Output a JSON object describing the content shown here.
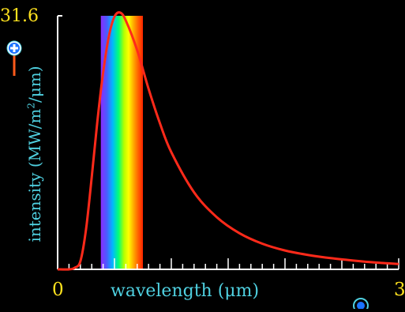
{
  "chart_data": {
    "type": "line",
    "xlabel": "wavelength",
    "xunit": "(μm)",
    "ylabel_main": "intensity (MW/m",
    "ylabel_sup": "2",
    "ylabel_tail": "/μm)",
    "ylim": [
      0,
      31.6
    ],
    "xlim": [
      0,
      3
    ],
    "ymax_label": "31.6",
    "x0_label": "0",
    "xmax_label": "3",
    "visible_band_um": [
      0.38,
      0.75
    ],
    "series": [
      {
        "color": "#ff2a1a",
        "x": [
          0.0,
          0.1,
          0.15,
          0.2,
          0.25,
          0.3,
          0.35,
          0.4,
          0.45,
          0.5,
          0.55,
          0.6,
          0.7,
          0.8,
          0.9,
          1.0,
          1.2,
          1.4,
          1.6,
          1.8,
          2.0,
          2.2,
          2.4,
          2.6,
          2.8,
          3.0
        ],
        "y": [
          0,
          0,
          0.2,
          1.0,
          5.0,
          11.5,
          18.5,
          24.5,
          29.0,
          31.5,
          32.0,
          31.0,
          27.3,
          22.5,
          18.2,
          14.6,
          9.6,
          6.5,
          4.5,
          3.2,
          2.35,
          1.8,
          1.4,
          1.1,
          0.85,
          0.67
        ]
      }
    ]
  },
  "controls": {
    "zoom_vertical_icon": "zoom-in-icon",
    "zoom_horizontal_icon": "zoom-in-icon"
  },
  "colors": {
    "axis": "#ffffff",
    "curve": "#ff2a1a",
    "label": "#4fd0e0",
    "tick_label": "#ffe21e",
    "zoom_ring": "#4fd0e0",
    "zoom_handle": "#ff5a1a"
  }
}
